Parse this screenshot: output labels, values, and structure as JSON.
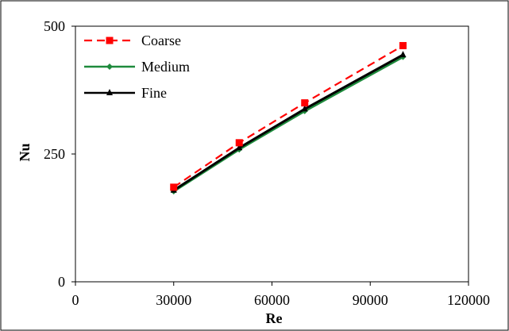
{
  "chart_data": {
    "type": "line",
    "title": "",
    "xlabel": "Re",
    "ylabel": "Nu",
    "xlim": [
      0,
      120000
    ],
    "ylim": [
      0,
      500
    ],
    "x_ticks": [
      "0",
      "30000",
      "60000",
      "90000",
      "120000"
    ],
    "y_ticks": [
      "0",
      "250",
      "500"
    ],
    "x_tick_values": [
      0,
      30000,
      60000,
      90000,
      120000
    ],
    "y_tick_values": [
      0,
      250,
      500
    ],
    "grid": false,
    "legend_position": "top-left",
    "x": [
      30000,
      50000,
      70000,
      100000
    ],
    "series": [
      {
        "name": "Coarse",
        "values": [
          185,
          272,
          350,
          462
        ],
        "color": "#ff0000",
        "dash": "dashed",
        "marker": "square"
      },
      {
        "name": "Medium",
        "values": [
          177,
          259,
          334,
          440
        ],
        "color": "#1e8a3c",
        "dash": "solid",
        "marker": "diamond"
      },
      {
        "name": "Fine",
        "values": [
          179,
          262,
          338,
          444
        ],
        "color": "#000000",
        "dash": "solid",
        "marker": "triangle"
      }
    ]
  }
}
